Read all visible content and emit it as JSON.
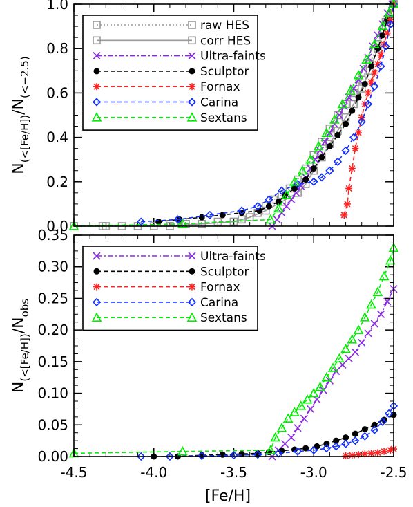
{
  "chart_data": [
    {
      "type": "line",
      "xlim": [
        -4.5,
        -2.5
      ],
      "ylim": [
        0.0,
        1.0
      ],
      "xticks": [
        "-4.5",
        "-4.0",
        "-3.5",
        "-3.0",
        "-2.5"
      ],
      "yticks": [
        "0.0",
        "0.2",
        "0.4",
        "0.6",
        "0.8",
        "1.0"
      ],
      "xtick_values": [
        -4.5,
        -4.0,
        -3.5,
        -3.0,
        -2.5
      ],
      "ytick_values": [
        0.0,
        0.2,
        0.4,
        0.6,
        0.8,
        1.0
      ],
      "ylabel": {
        "main": "N",
        "sub1": "(<[Fe/H])",
        "slash": "/N",
        "sub2": "(<−2.5)"
      },
      "legend_position": "top-left",
      "series": [
        {
          "name": "raw HES",
          "color": "#999999",
          "dash": "2,3",
          "marker": "square",
          "x": [
            -4.5,
            -4.32,
            -4.2,
            -4.1,
            -4.0,
            -3.9,
            -3.8,
            -3.7,
            -3.6,
            -3.5,
            -3.45,
            -3.4,
            -3.35,
            -3.3,
            -3.25,
            -3.2,
            -3.15,
            -3.1,
            -3.05,
            -3.0,
            -2.95,
            -2.9,
            -2.85,
            -2.8,
            -2.75,
            -2.7,
            -2.65,
            -2.6,
            -2.55,
            -2.5
          ],
          "y": [
            0.0,
            0.0,
            0.0,
            0.0,
            0.0,
            0.0,
            0.01,
            0.01,
            0.02,
            0.02,
            0.03,
            0.04,
            0.06,
            0.09,
            0.12,
            0.14,
            0.17,
            0.21,
            0.26,
            0.32,
            0.38,
            0.44,
            0.5,
            0.55,
            0.6,
            0.66,
            0.73,
            0.82,
            0.92,
            1.0
          ]
        },
        {
          "name": "corr HES",
          "color": "#999999",
          "dash": "",
          "marker": "square",
          "x": [
            -4.5,
            -4.3,
            -4.1,
            -3.9,
            -3.7,
            -3.5,
            -3.4,
            -3.3,
            -3.2,
            -3.1,
            -3.05,
            -3.0,
            -2.95,
            -2.9,
            -2.85,
            -2.8,
            -2.75,
            -2.7,
            -2.65,
            -2.6,
            -2.55,
            -2.5
          ],
          "y": [
            0.0,
            0.0,
            0.0,
            0.0,
            0.01,
            0.02,
            0.04,
            0.07,
            0.11,
            0.15,
            0.19,
            0.25,
            0.31,
            0.37,
            0.43,
            0.49,
            0.55,
            0.62,
            0.7,
            0.8,
            0.9,
            1.0
          ]
        },
        {
          "name": "Ultra-faints",
          "color": "#8a2be2",
          "dash": "8,3,2,3",
          "marker": "x",
          "x": [
            -3.26,
            -3.23,
            -3.2,
            -3.17,
            -3.14,
            -3.11,
            -3.08,
            -3.05,
            -3.02,
            -2.99,
            -2.96,
            -2.93,
            -2.9,
            -2.87,
            -2.84,
            -2.81,
            -2.78,
            -2.75,
            -2.72,
            -2.69,
            -2.66,
            -2.63,
            -2.6,
            -2.57,
            -2.54,
            -2.51
          ],
          "y": [
            0.0,
            0.03,
            0.06,
            0.09,
            0.12,
            0.15,
            0.18,
            0.22,
            0.26,
            0.3,
            0.34,
            0.38,
            0.42,
            0.46,
            0.5,
            0.54,
            0.58,
            0.62,
            0.66,
            0.71,
            0.76,
            0.81,
            0.86,
            0.91,
            0.96,
            1.0
          ]
        },
        {
          "name": "Sculptor",
          "color": "#000000",
          "dash": "6,4",
          "marker": "dot",
          "x": [
            -3.97,
            -3.84,
            -3.7,
            -3.57,
            -3.45,
            -3.34,
            -3.28,
            -3.22,
            -3.18,
            -3.12,
            -3.05,
            -3.0,
            -2.95,
            -2.9,
            -2.85,
            -2.8,
            -2.76,
            -2.72,
            -2.68,
            -2.64,
            -2.6,
            -2.57,
            -2.54,
            -2.51
          ],
          "y": [
            0.02,
            0.03,
            0.04,
            0.05,
            0.06,
            0.07,
            0.09,
            0.11,
            0.14,
            0.17,
            0.21,
            0.26,
            0.31,
            0.36,
            0.41,
            0.46,
            0.52,
            0.58,
            0.64,
            0.72,
            0.8,
            0.86,
            0.93,
            1.0
          ]
        },
        {
          "name": "Fornax",
          "color": "#ff2020",
          "dash": "6,4",
          "marker": "asterisk",
          "x": [
            -2.81,
            -2.79,
            -2.78,
            -2.76,
            -2.74,
            -2.72,
            -2.7,
            -2.68,
            -2.66,
            -2.64,
            -2.62,
            -2.6,
            -2.58,
            -2.56,
            -2.54,
            -2.52,
            -2.5
          ],
          "y": [
            0.05,
            0.1,
            0.17,
            0.26,
            0.35,
            0.42,
            0.49,
            0.55,
            0.6,
            0.65,
            0.69,
            0.73,
            0.77,
            0.82,
            0.87,
            0.93,
            1.0
          ]
        },
        {
          "name": "Carina",
          "color": "#1030ff",
          "dash": "6,4",
          "marker": "diamond",
          "x": [
            -4.08,
            -3.85,
            -3.65,
            -3.45,
            -3.35,
            -3.28,
            -3.2,
            -3.1,
            -3.0,
            -2.95,
            -2.9,
            -2.85,
            -2.8,
            -2.75,
            -2.7,
            -2.66,
            -2.62,
            -2.58,
            -2.55,
            -2.52,
            -2.5
          ],
          "y": [
            0.02,
            0.03,
            0.05,
            0.07,
            0.09,
            0.12,
            0.16,
            0.19,
            0.2,
            0.22,
            0.25,
            0.29,
            0.34,
            0.4,
            0.47,
            0.55,
            0.63,
            0.72,
            0.81,
            0.91,
            1.0
          ]
        },
        {
          "name": "Sextans",
          "color": "#00ee00",
          "dash": "6,4",
          "marker": "triangle",
          "x": [
            -4.5,
            -3.82,
            -3.27,
            -3.22,
            -3.17,
            -3.12,
            -3.07,
            -3.02,
            -2.97,
            -2.92,
            -2.87,
            -2.82,
            -2.77,
            -2.72,
            -2.67,
            -2.62,
            -2.57,
            -2.53,
            -2.5
          ],
          "y": [
            0.0,
            0.01,
            0.03,
            0.08,
            0.14,
            0.2,
            0.25,
            0.3,
            0.36,
            0.42,
            0.48,
            0.55,
            0.61,
            0.68,
            0.75,
            0.82,
            0.9,
            0.96,
            1.0
          ]
        }
      ]
    },
    {
      "type": "line",
      "xlim": [
        -4.5,
        -2.5
      ],
      "ylim": [
        0.0,
        0.35
      ],
      "xticks": [
        "-4.5",
        "-4.0",
        "-3.5",
        "-3.0",
        "-2.5"
      ],
      "yticks": [
        "0.00",
        "0.05",
        "0.10",
        "0.15",
        "0.20",
        "0.25",
        "0.30",
        "0.35"
      ],
      "xtick_values": [
        -4.5,
        -4.0,
        -3.5,
        -3.0,
        -2.5
      ],
      "ytick_values": [
        0.0,
        0.05,
        0.1,
        0.15,
        0.2,
        0.25,
        0.3,
        0.35
      ],
      "xlabel": "[Fe/H]",
      "ylabel": {
        "main": "N",
        "sub1": "(<[Fe/H])",
        "slash": "/N",
        "sub2": "obs"
      },
      "legend_position": "top-left",
      "series": [
        {
          "name": "Ultra-faints",
          "color": "#8a2be2",
          "dash": "8,3,2,3",
          "marker": "x",
          "x": [
            -3.26,
            -3.22,
            -3.18,
            -3.14,
            -3.1,
            -3.06,
            -3.02,
            -2.98,
            -2.94,
            -2.9,
            -2.86,
            -2.82,
            -2.78,
            -2.74,
            -2.7,
            -2.66,
            -2.62,
            -2.58,
            -2.54,
            -2.5
          ],
          "y": [
            0.0,
            0.01,
            0.02,
            0.03,
            0.045,
            0.06,
            0.075,
            0.09,
            0.105,
            0.12,
            0.135,
            0.145,
            0.155,
            0.165,
            0.18,
            0.195,
            0.21,
            0.225,
            0.245,
            0.265
          ]
        },
        {
          "name": "Sculptor",
          "color": "#000000",
          "dash": "6,4",
          "marker": "dot",
          "x": [
            -4.0,
            -3.85,
            -3.7,
            -3.57,
            -3.45,
            -3.35,
            -3.28,
            -3.2,
            -3.12,
            -3.05,
            -2.98,
            -2.92,
            -2.86,
            -2.8,
            -2.74,
            -2.68,
            -2.62,
            -2.56,
            -2.5
          ],
          "y": [
            0.0,
            0.0,
            0.002,
            0.003,
            0.004,
            0.005,
            0.007,
            0.009,
            0.011,
            0.013,
            0.016,
            0.02,
            0.025,
            0.03,
            0.036,
            0.043,
            0.05,
            0.058,
            0.066
          ]
        },
        {
          "name": "Fornax",
          "color": "#ff2020",
          "dash": "6,4",
          "marker": "asterisk",
          "x": [
            -2.8,
            -2.76,
            -2.72,
            -2.68,
            -2.64,
            -2.6,
            -2.56,
            -2.52,
            -2.5
          ],
          "y": [
            0.001,
            0.002,
            0.003,
            0.004,
            0.005,
            0.006,
            0.008,
            0.01,
            0.012
          ]
        },
        {
          "name": "Carina",
          "color": "#1030ff",
          "dash": "6,4",
          "marker": "diamond",
          "x": [
            -4.08,
            -3.9,
            -3.7,
            -3.5,
            -3.35,
            -3.22,
            -3.1,
            -3.0,
            -2.92,
            -2.86,
            -2.8,
            -2.74,
            -2.68,
            -2.62,
            -2.57,
            -2.53,
            -2.5
          ],
          "y": [
            0.0,
            0.0,
            0.001,
            0.002,
            0.003,
            0.005,
            0.008,
            0.01,
            0.013,
            0.016,
            0.02,
            0.025,
            0.032,
            0.042,
            0.055,
            0.068,
            0.08
          ]
        },
        {
          "name": "Sextans",
          "color": "#00ee00",
          "dash": "6,4",
          "marker": "triangle",
          "x": [
            -4.5,
            -3.82,
            -3.27,
            -3.24,
            -3.2,
            -3.16,
            -3.12,
            -3.08,
            -3.04,
            -3.0,
            -2.96,
            -2.92,
            -2.88,
            -2.84,
            -2.8,
            -2.76,
            -2.72,
            -2.68,
            -2.64,
            -2.6,
            -2.56,
            -2.52,
            -2.5
          ],
          "y": [
            0.005,
            0.008,
            0.01,
            0.03,
            0.045,
            0.06,
            0.07,
            0.08,
            0.09,
            0.1,
            0.11,
            0.125,
            0.14,
            0.155,
            0.17,
            0.185,
            0.2,
            0.22,
            0.24,
            0.26,
            0.285,
            0.31,
            0.33
          ]
        }
      ]
    }
  ]
}
